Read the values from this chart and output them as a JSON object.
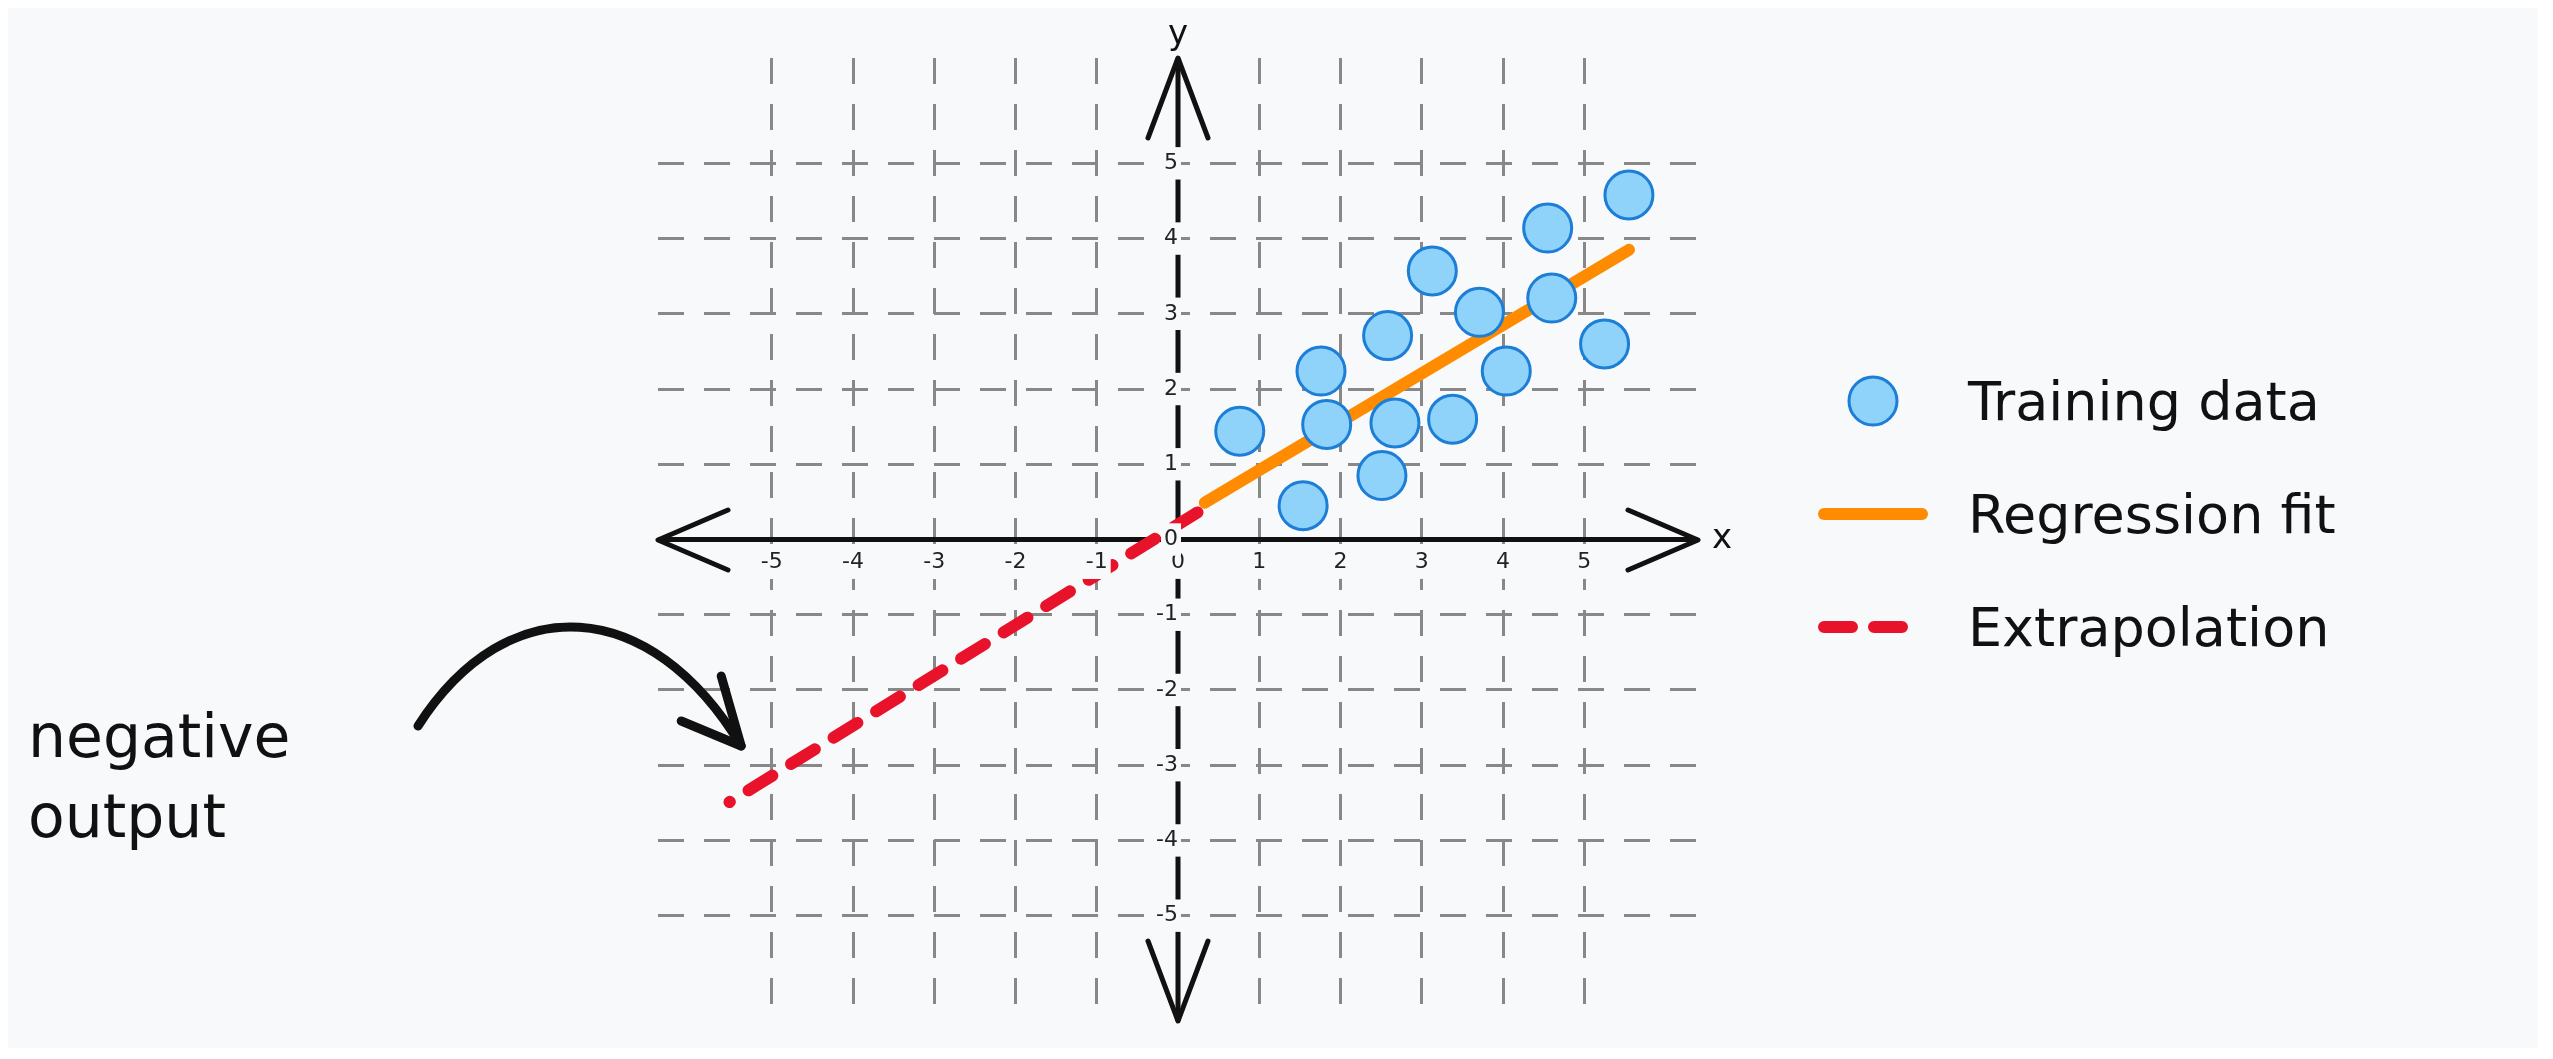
{
  "chart_data": {
    "type": "scatter",
    "xlabel": "x",
    "ylabel": "y",
    "xlim": [
      -6.4,
      6.4
    ],
    "ylim": [
      -6.4,
      6.4
    ],
    "xticks": [
      -5,
      -4,
      -3,
      -2,
      -1,
      0,
      1,
      2,
      3,
      4,
      5
    ],
    "yticks": [
      -5,
      -4,
      -3,
      -2,
      -1,
      0,
      1,
      2,
      3,
      4,
      5
    ],
    "grid": true,
    "legend": "right",
    "marker": "circle",
    "series": [
      {
        "name": "Training data",
        "color": "#8fd3fb",
        "x": [
          0.76,
          1.54,
          1.76,
          1.83,
          2.58,
          2.51,
          2.67,
          3.13,
          3.38,
          3.71,
          4.04,
          4.55,
          4.6,
          5.25,
          5.55
        ],
        "values": [
          1.44,
          0.45,
          2.24,
          1.53,
          2.71,
          0.85,
          1.55,
          3.57,
          1.6,
          3.02,
          2.24,
          4.14,
          3.21,
          2.6,
          4.58
        ]
      },
      {
        "name": "Regression fit",
        "type": "line",
        "color": "#ff8c00",
        "line_style": "solid",
        "marker": "none",
        "x": [
          0.33,
          5.55
        ],
        "values": [
          0.49,
          3.85
        ]
      },
      {
        "name": "Extrapolation",
        "type": "line",
        "color": "#e8132b",
        "line_style": "dashed",
        "marker": "none",
        "x": [
          0.24,
          -5.52
        ],
        "values": [
          0.36,
          -3.49
        ]
      }
    ],
    "annotations": [
      "negative output"
    ]
  }
}
